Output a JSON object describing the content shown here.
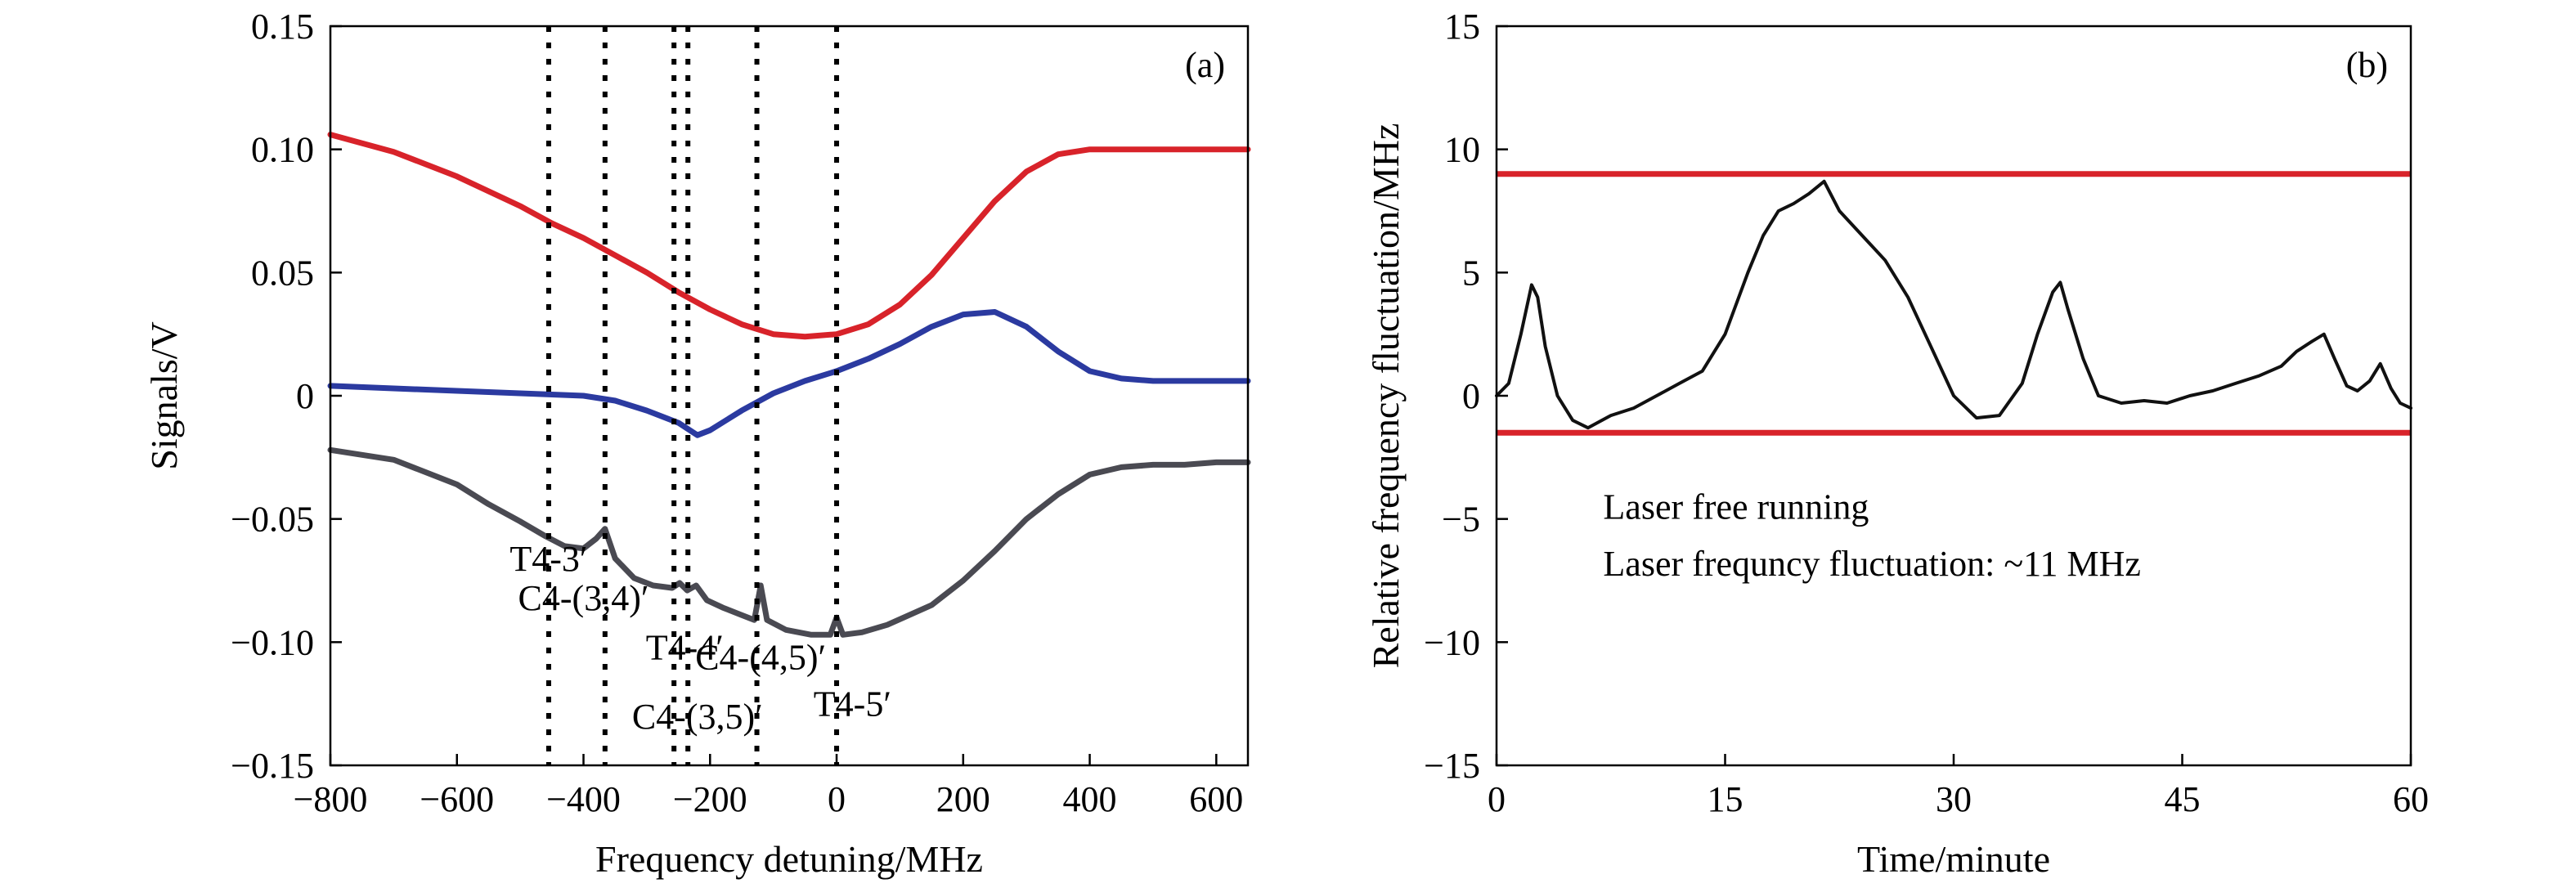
{
  "chart_data": [
    {
      "type": "line",
      "panel_label": "(a)",
      "xlabel": "Frequency detuning/MHz",
      "ylabel": "Signals/V",
      "xlim": [
        -800,
        650
      ],
      "ylim": [
        -0.15,
        0.15
      ],
      "xticks": [
        -800,
        -600,
        -400,
        -200,
        0,
        200,
        400,
        600
      ],
      "xtick_labels": [
        "−800",
        "−600",
        "−400",
        "−200",
        "0",
        "200",
        "400",
        "600"
      ],
      "yticks": [
        -0.15,
        -0.1,
        -0.05,
        0,
        0.05,
        0.1,
        0.15
      ],
      "ytick_labels": [
        "−0.15",
        "−0.10",
        "−0.05",
        "0",
        "0.05",
        "0.10",
        "0.15"
      ],
      "grid": false,
      "series": [
        {
          "color": "#d8232a",
          "x": [
            -800,
            -700,
            -600,
            -500,
            -450,
            -400,
            -350,
            -300,
            -250,
            -200,
            -150,
            -100,
            -50,
            0,
            50,
            100,
            150,
            200,
            250,
            300,
            350,
            400,
            450,
            500,
            550,
            600,
            650
          ],
          "y": [
            0.106,
            0.099,
            0.089,
            0.077,
            0.07,
            0.064,
            0.057,
            0.05,
            0.042,
            0.035,
            0.029,
            0.025,
            0.024,
            0.025,
            0.029,
            0.037,
            0.049,
            0.064,
            0.079,
            0.091,
            0.098,
            0.1,
            0.1,
            0.1,
            0.1,
            0.1,
            0.1
          ]
        },
        {
          "color": "#2b3aa0",
          "x": [
            -800,
            -700,
            -600,
            -500,
            -400,
            -350,
            -300,
            -250,
            -220,
            -200,
            -150,
            -100,
            -50,
            0,
            50,
            100,
            150,
            200,
            250,
            300,
            350,
            400,
            450,
            500,
            550,
            600,
            650
          ],
          "y": [
            0.004,
            0.003,
            0.002,
            0.001,
            0.0,
            -0.002,
            -0.006,
            -0.011,
            -0.016,
            -0.014,
            -0.006,
            0.001,
            0.006,
            0.01,
            0.015,
            0.021,
            0.028,
            0.033,
            0.034,
            0.028,
            0.018,
            0.01,
            0.007,
            0.006,
            0.006,
            0.006,
            0.006
          ]
        },
        {
          "color": "#4a4a52",
          "x": [
            -800,
            -700,
            -600,
            -550,
            -500,
            -460,
            -430,
            -400,
            -380,
            -366,
            -350,
            -320,
            -290,
            -260,
            -248,
            -236,
            -222,
            -205,
            -180,
            -150,
            -130,
            -120,
            -110,
            -80,
            -40,
            -10,
            0,
            10,
            40,
            80,
            150,
            200,
            250,
            300,
            350,
            400,
            450,
            500,
            550,
            600,
            650
          ],
          "y": [
            -0.022,
            -0.026,
            -0.036,
            -0.044,
            -0.051,
            -0.057,
            -0.061,
            -0.062,
            -0.058,
            -0.054,
            -0.066,
            -0.074,
            -0.077,
            -0.078,
            -0.076,
            -0.079,
            -0.077,
            -0.083,
            -0.086,
            -0.089,
            -0.091,
            -0.077,
            -0.091,
            -0.095,
            -0.097,
            -0.097,
            -0.09,
            -0.097,
            -0.096,
            -0.093,
            -0.085,
            -0.075,
            -0.063,
            -0.05,
            -0.04,
            -0.032,
            -0.029,
            -0.028,
            -0.028,
            -0.027,
            -0.027
          ]
        }
      ],
      "vlines": [
        -455,
        -366,
        -257,
        -235,
        -126,
        0
      ],
      "annotations": [
        {
          "text": "T4-3′",
          "x": -455,
          "y": -0.071
        },
        {
          "text": "C4-(3,4)′",
          "x": -400,
          "y": -0.087
        },
        {
          "text": "T4-4′",
          "x": -240,
          "y": -0.107
        },
        {
          "text": "C4-(4,5)′",
          "x": -120,
          "y": -0.111
        },
        {
          "text": "C4-(3,5)′",
          "x": -220,
          "y": -0.135
        },
        {
          "text": "T4-5′",
          "x": 25,
          "y": -0.13
        }
      ]
    },
    {
      "type": "line",
      "panel_label": "(b)",
      "xlabel": "Time/minute",
      "ylabel": "Relative frequency fluctuation/MHz",
      "xlim": [
        0,
        60
      ],
      "ylim": [
        -15,
        15
      ],
      "xticks": [
        0,
        15,
        30,
        45,
        60
      ],
      "xtick_labels": [
        "0",
        "15",
        "30",
        "45",
        "60"
      ],
      "yticks": [
        -15,
        -10,
        -5,
        0,
        5,
        10,
        15
      ],
      "ytick_labels": [
        "−15",
        "−10",
        "−5",
        "0",
        "5",
        "10",
        "15"
      ],
      "grid": false,
      "hlines": [
        {
          "y": 9.0,
          "color": "#d8232a"
        },
        {
          "y": -1.5,
          "color": "#d8232a"
        }
      ],
      "series": [
        {
          "color": "#111111",
          "x": [
            0,
            0.8,
            1.6,
            2.3,
            2.7,
            3.2,
            4.0,
            5.0,
            6.0,
            7.5,
            9.0,
            10.5,
            12.0,
            13.5,
            15.0,
            16.5,
            17.5,
            18.5,
            19.5,
            20.5,
            21.5,
            22.5,
            24.0,
            25.5,
            27.0,
            28.5,
            30.0,
            31.5,
            33.0,
            34.5,
            35.5,
            36.5,
            37.0,
            37.5,
            38.5,
            39.5,
            41.0,
            42.5,
            44.0,
            45.5,
            47.0,
            48.5,
            50.0,
            51.5,
            52.5,
            53.5,
            54.3,
            55.0,
            55.8,
            56.5,
            57.3,
            58.0,
            58.7,
            59.3,
            60.0
          ],
          "y": [
            0,
            0.5,
            2.5,
            4.5,
            4.0,
            2.0,
            0,
            -1.0,
            -1.3,
            -0.8,
            -0.5,
            0,
            0.5,
            1.0,
            2.5,
            5.0,
            6.5,
            7.5,
            7.8,
            8.2,
            8.7,
            7.5,
            6.5,
            5.5,
            4.0,
            2.0,
            0,
            -0.9,
            -0.8,
            0.5,
            2.5,
            4.2,
            4.6,
            3.5,
            1.5,
            0,
            -0.3,
            -0.2,
            -0.3,
            0,
            0.2,
            0.5,
            0.8,
            1.2,
            1.8,
            2.2,
            2.5,
            1.5,
            0.4,
            0.2,
            0.6,
            1.3,
            0.3,
            -0.3,
            -0.5
          ]
        }
      ],
      "annotations": [
        {
          "text": "Laser free running",
          "x": 7,
          "y": -5
        },
        {
          "text": "Laser frequncy fluctuation: ~11 MHz",
          "x": 7,
          "y": -7.3
        }
      ]
    }
  ]
}
